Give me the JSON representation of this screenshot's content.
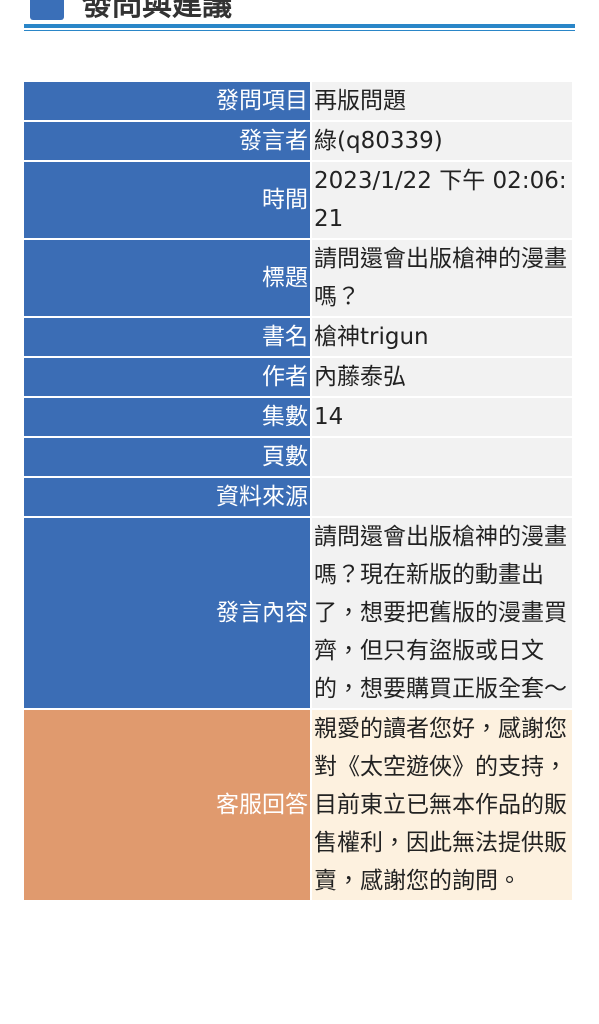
{
  "header": {
    "title": "發問與建議"
  },
  "table": {
    "rows": [
      {
        "label": "發問項目",
        "value": "再版問題"
      },
      {
        "label": "發言者",
        "value": "綠(q80339)"
      },
      {
        "label": "時間",
        "value": "2023/1/22 下午 02:06:21"
      },
      {
        "label": "標題",
        "value": "請問還會出版槍神的漫畫嗎？"
      },
      {
        "label": "書名",
        "value": "槍神trigun"
      },
      {
        "label": "作者",
        "value": "內藤泰弘"
      },
      {
        "label": "集數",
        "value": "14"
      },
      {
        "label": "頁數"
      },
      {
        "label": "資料來源"
      },
      {
        "label": "發言內容",
        "value": "請問還會出版槍神的漫畫嗎？現在新版的動畫出了，想要把舊版的漫畫買齊，但只有盜版或日文的，想要購買正版全套～"
      },
      {
        "label": "客服回答",
        "value": "親愛的讀者您好，感謝您對《太空遊俠》的支持，目前東立已無本作品的販售權利，因此無法提供販賣，感謝您的詢問。",
        "reply": true
      }
    ]
  }
}
